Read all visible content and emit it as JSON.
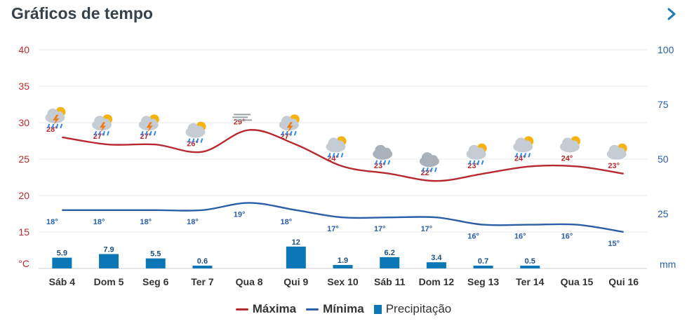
{
  "header": {
    "title": "Gráficos de tempo",
    "next_icon": "chevron-right-icon"
  },
  "colors": {
    "max": "#b8292f",
    "min": "#2a5ea7",
    "precip": "#0b78b5",
    "grid": "#e9e9e9",
    "axis_temp": "#b8292f",
    "axis_precip": "#2a5ea7",
    "text": "#333333"
  },
  "legend": {
    "max_label": "Máxima",
    "min_label": "Mínima",
    "precip_label": "Precipitação"
  },
  "chart_data": {
    "type": "line",
    "categories": [
      "Sáb 4",
      "Dom 5",
      "Seg 6",
      "Ter 7",
      "Qua 8",
      "Qui 9",
      "Sex 10",
      "Sáb 11",
      "Dom 12",
      "Seg 13",
      "Ter 14",
      "Qua 15",
      "Qui 16"
    ],
    "series": [
      {
        "name": "Máxima",
        "unit": "°C",
        "axis": "left",
        "values": [
          28,
          27,
          27,
          26,
          29,
          27,
          24,
          23,
          22,
          23,
          24,
          24,
          23
        ],
        "labels": [
          "28°",
          "27°",
          "27°",
          "26°",
          "29°",
          "27°",
          "24°",
          "23°",
          "22°",
          "23°",
          "24°",
          "24°",
          "23°"
        ]
      },
      {
        "name": "Mínima",
        "unit": "°C",
        "axis": "left",
        "values": [
          18,
          18,
          18,
          18,
          19,
          18,
          17,
          17,
          17,
          16,
          16,
          16,
          15
        ],
        "labels": [
          "18°",
          "18°",
          "18°",
          "18°",
          "19°",
          "18°",
          "17°",
          "17°",
          "17°",
          "16°",
          "16°",
          "16°",
          "15°"
        ]
      },
      {
        "name": "Precipitação",
        "type": "bar",
        "unit": "mm",
        "axis": "right",
        "values": [
          5.9,
          7.9,
          5.5,
          0.6,
          0,
          12,
          1.9,
          6.2,
          3.4,
          0.7,
          0.5,
          0,
          0
        ],
        "labels": [
          "5.9",
          "7.9",
          "5.5",
          "0.6",
          "",
          "12",
          "1.9",
          "6.2",
          "3.4",
          "0.7",
          "0.5",
          "",
          ""
        ]
      }
    ],
    "weather_icons": [
      "thunder-rain-icon",
      "thunder-rain-icon",
      "thunder-rain-icon",
      "sun-cloud-rain-icon",
      "fog-icon",
      "thunder-rain-icon",
      "sun-cloud-rain-icon",
      "cloud-rain-icon",
      "cloud-rain-icon",
      "sun-cloud-rain-icon",
      "sun-cloud-rain-icon",
      "sun-cloud-icon",
      "sun-cloud-icon"
    ],
    "y_left": {
      "label": "°C",
      "ticks": [
        "15",
        "20",
        "25",
        "30",
        "35",
        "40"
      ],
      "range": [
        10,
        40
      ]
    },
    "y_right": {
      "label": "mm",
      "ticks": [
        "25",
        "50",
        "75",
        "100"
      ],
      "range": [
        0,
        100
      ]
    },
    "grid": true,
    "legend_position": "bottom"
  }
}
